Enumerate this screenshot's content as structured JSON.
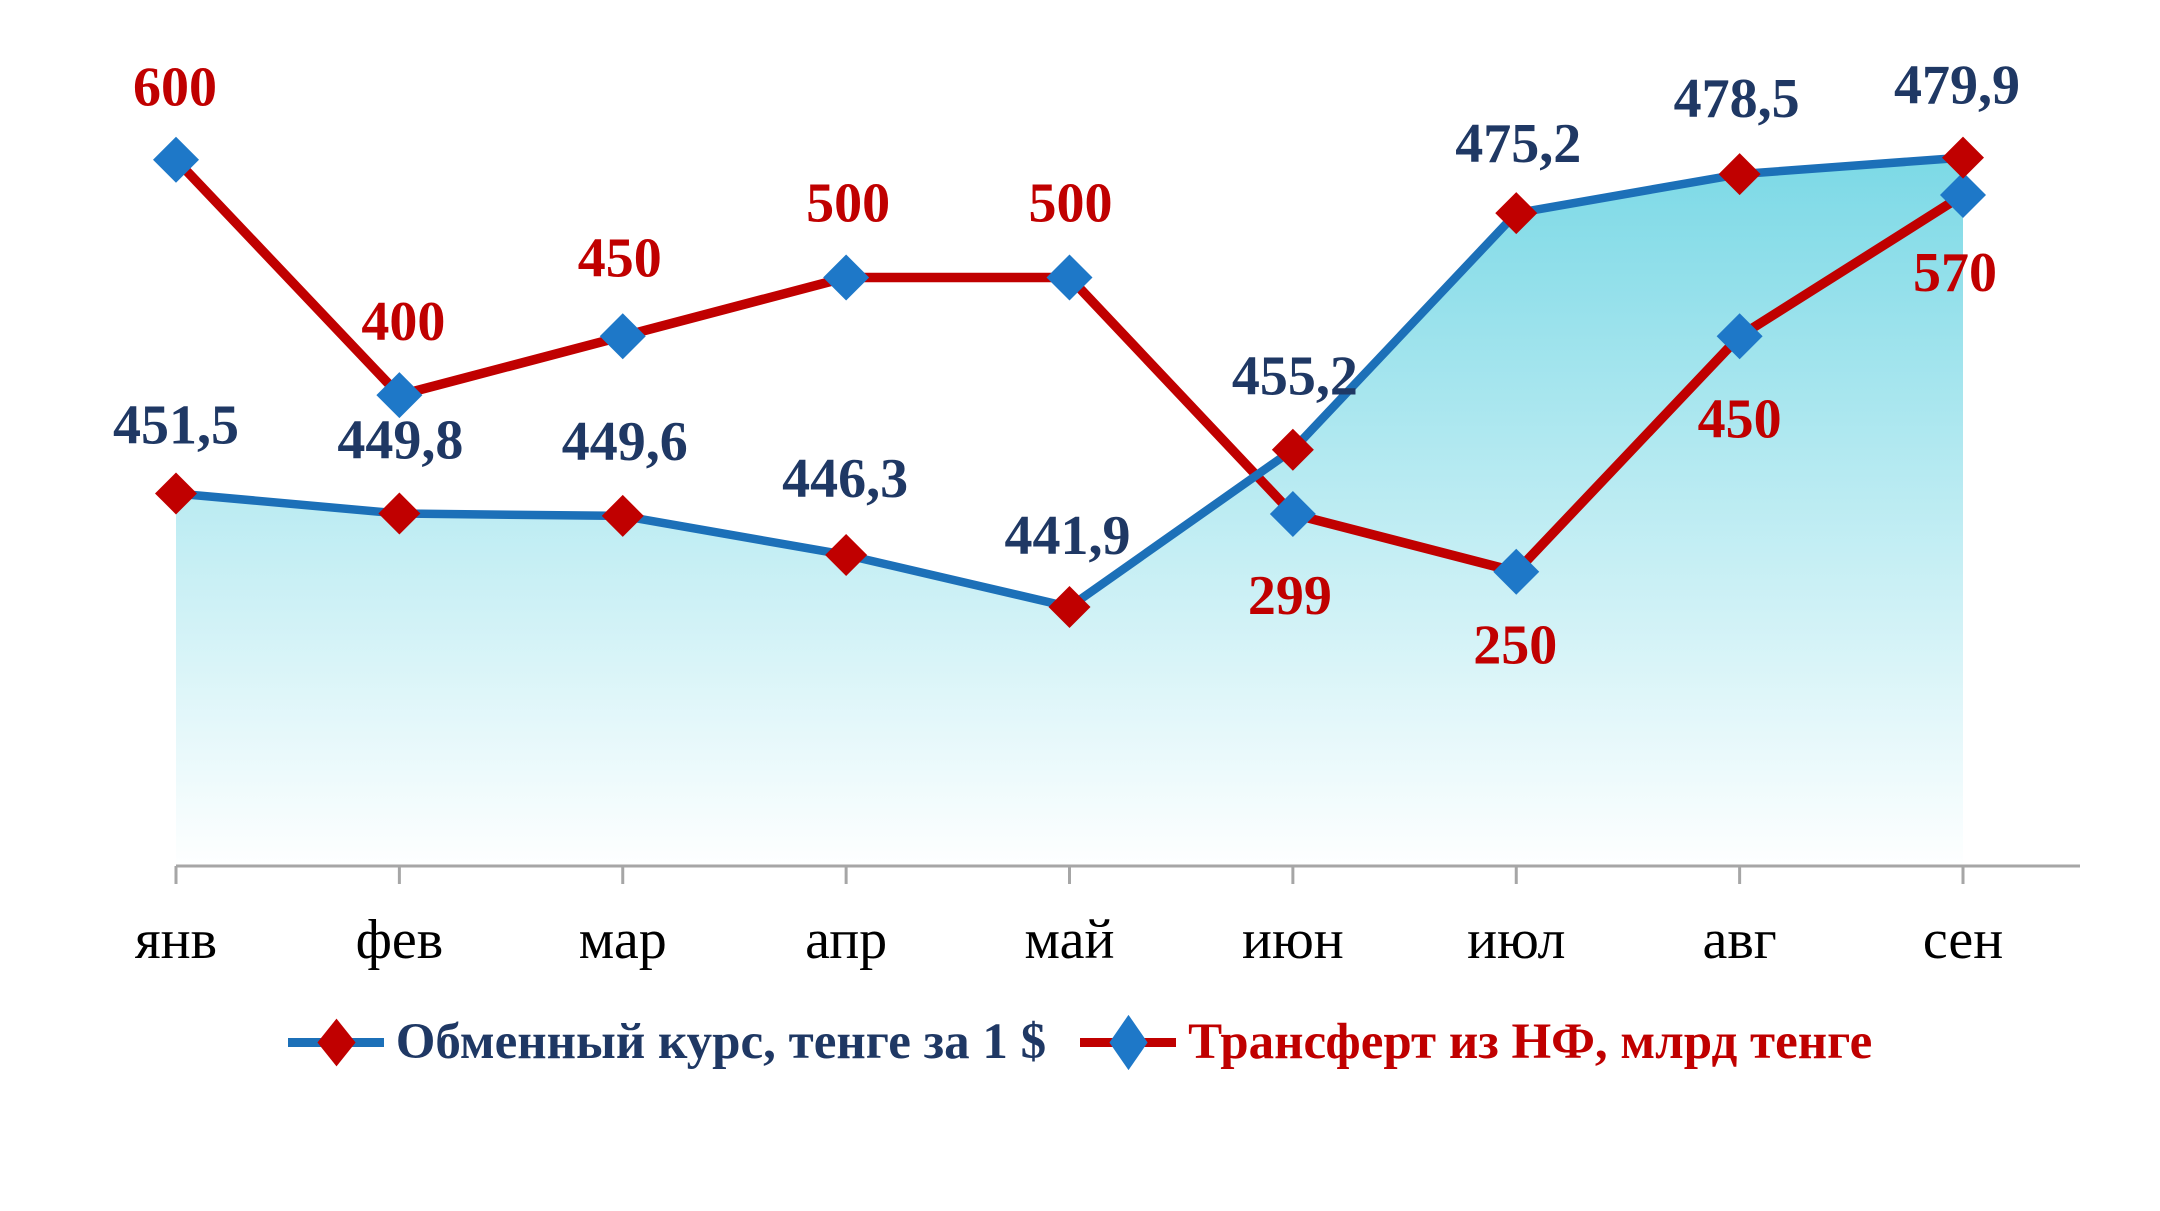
{
  "chart_data": {
    "type": "line",
    "categories": [
      "янв",
      "фев",
      "мар",
      "апр",
      "май",
      "июн",
      "июл",
      "авг",
      "сен"
    ],
    "series": [
      {
        "name": "Обменный курс, тенге за 1 $",
        "values": [
          451.5,
          449.8,
          449.6,
          446.3,
          441.9,
          455.2,
          475.2,
          478.5,
          479.9
        ],
        "labels": [
          "451,5",
          "449,8",
          "449,6",
          "446,3",
          "441,9",
          "455,2",
          "475,2",
          "478,5",
          "479,9"
        ],
        "label_offsets": [
          [
            0,
            -50
          ],
          [
            1,
            -55
          ],
          [
            2,
            -56
          ],
          [
            -1,
            -58
          ],
          [
            -2,
            -53
          ],
          [
            2,
            -55
          ],
          [
            2,
            -51
          ],
          [
            -3,
            -57
          ],
          [
            -6,
            -54
          ]
        ],
        "line_color": "#1C70B8",
        "marker_color": "#C00000",
        "label_color": "#1F3864",
        "axis_range": [
          420,
          483.5
        ],
        "area_fill": true
      },
      {
        "name": "Трансферт из НФ, млрд тенге",
        "values": [
          600,
          400,
          450,
          500,
          500,
          299,
          250,
          450,
          570
        ],
        "labels": [
          "600",
          "400",
          "450",
          "500",
          "500",
          "299",
          "250",
          "450",
          "570"
        ],
        "label_offsets": [
          [
            -1,
            -54
          ],
          [
            4,
            -55
          ],
          [
            -3,
            -60
          ],
          [
            2,
            -56
          ],
          [
            1,
            -56
          ],
          [
            -3,
            100
          ],
          [
            -1,
            92
          ],
          [
            0,
            101
          ],
          [
            -8,
            96
          ]
        ],
        "line_color": "#C00000",
        "marker_color": "#1E78C8",
        "label_color": "#C00000",
        "axis_range": [
          0,
          638
        ],
        "area_fill": false
      }
    ],
    "area_gradient": {
      "top": "#7CD9E6",
      "bottom": "#FEFFFF"
    },
    "axis": {
      "color": "#A6A6A6"
    },
    "grid": "off",
    "legend_position": "bottom",
    "title": ""
  }
}
